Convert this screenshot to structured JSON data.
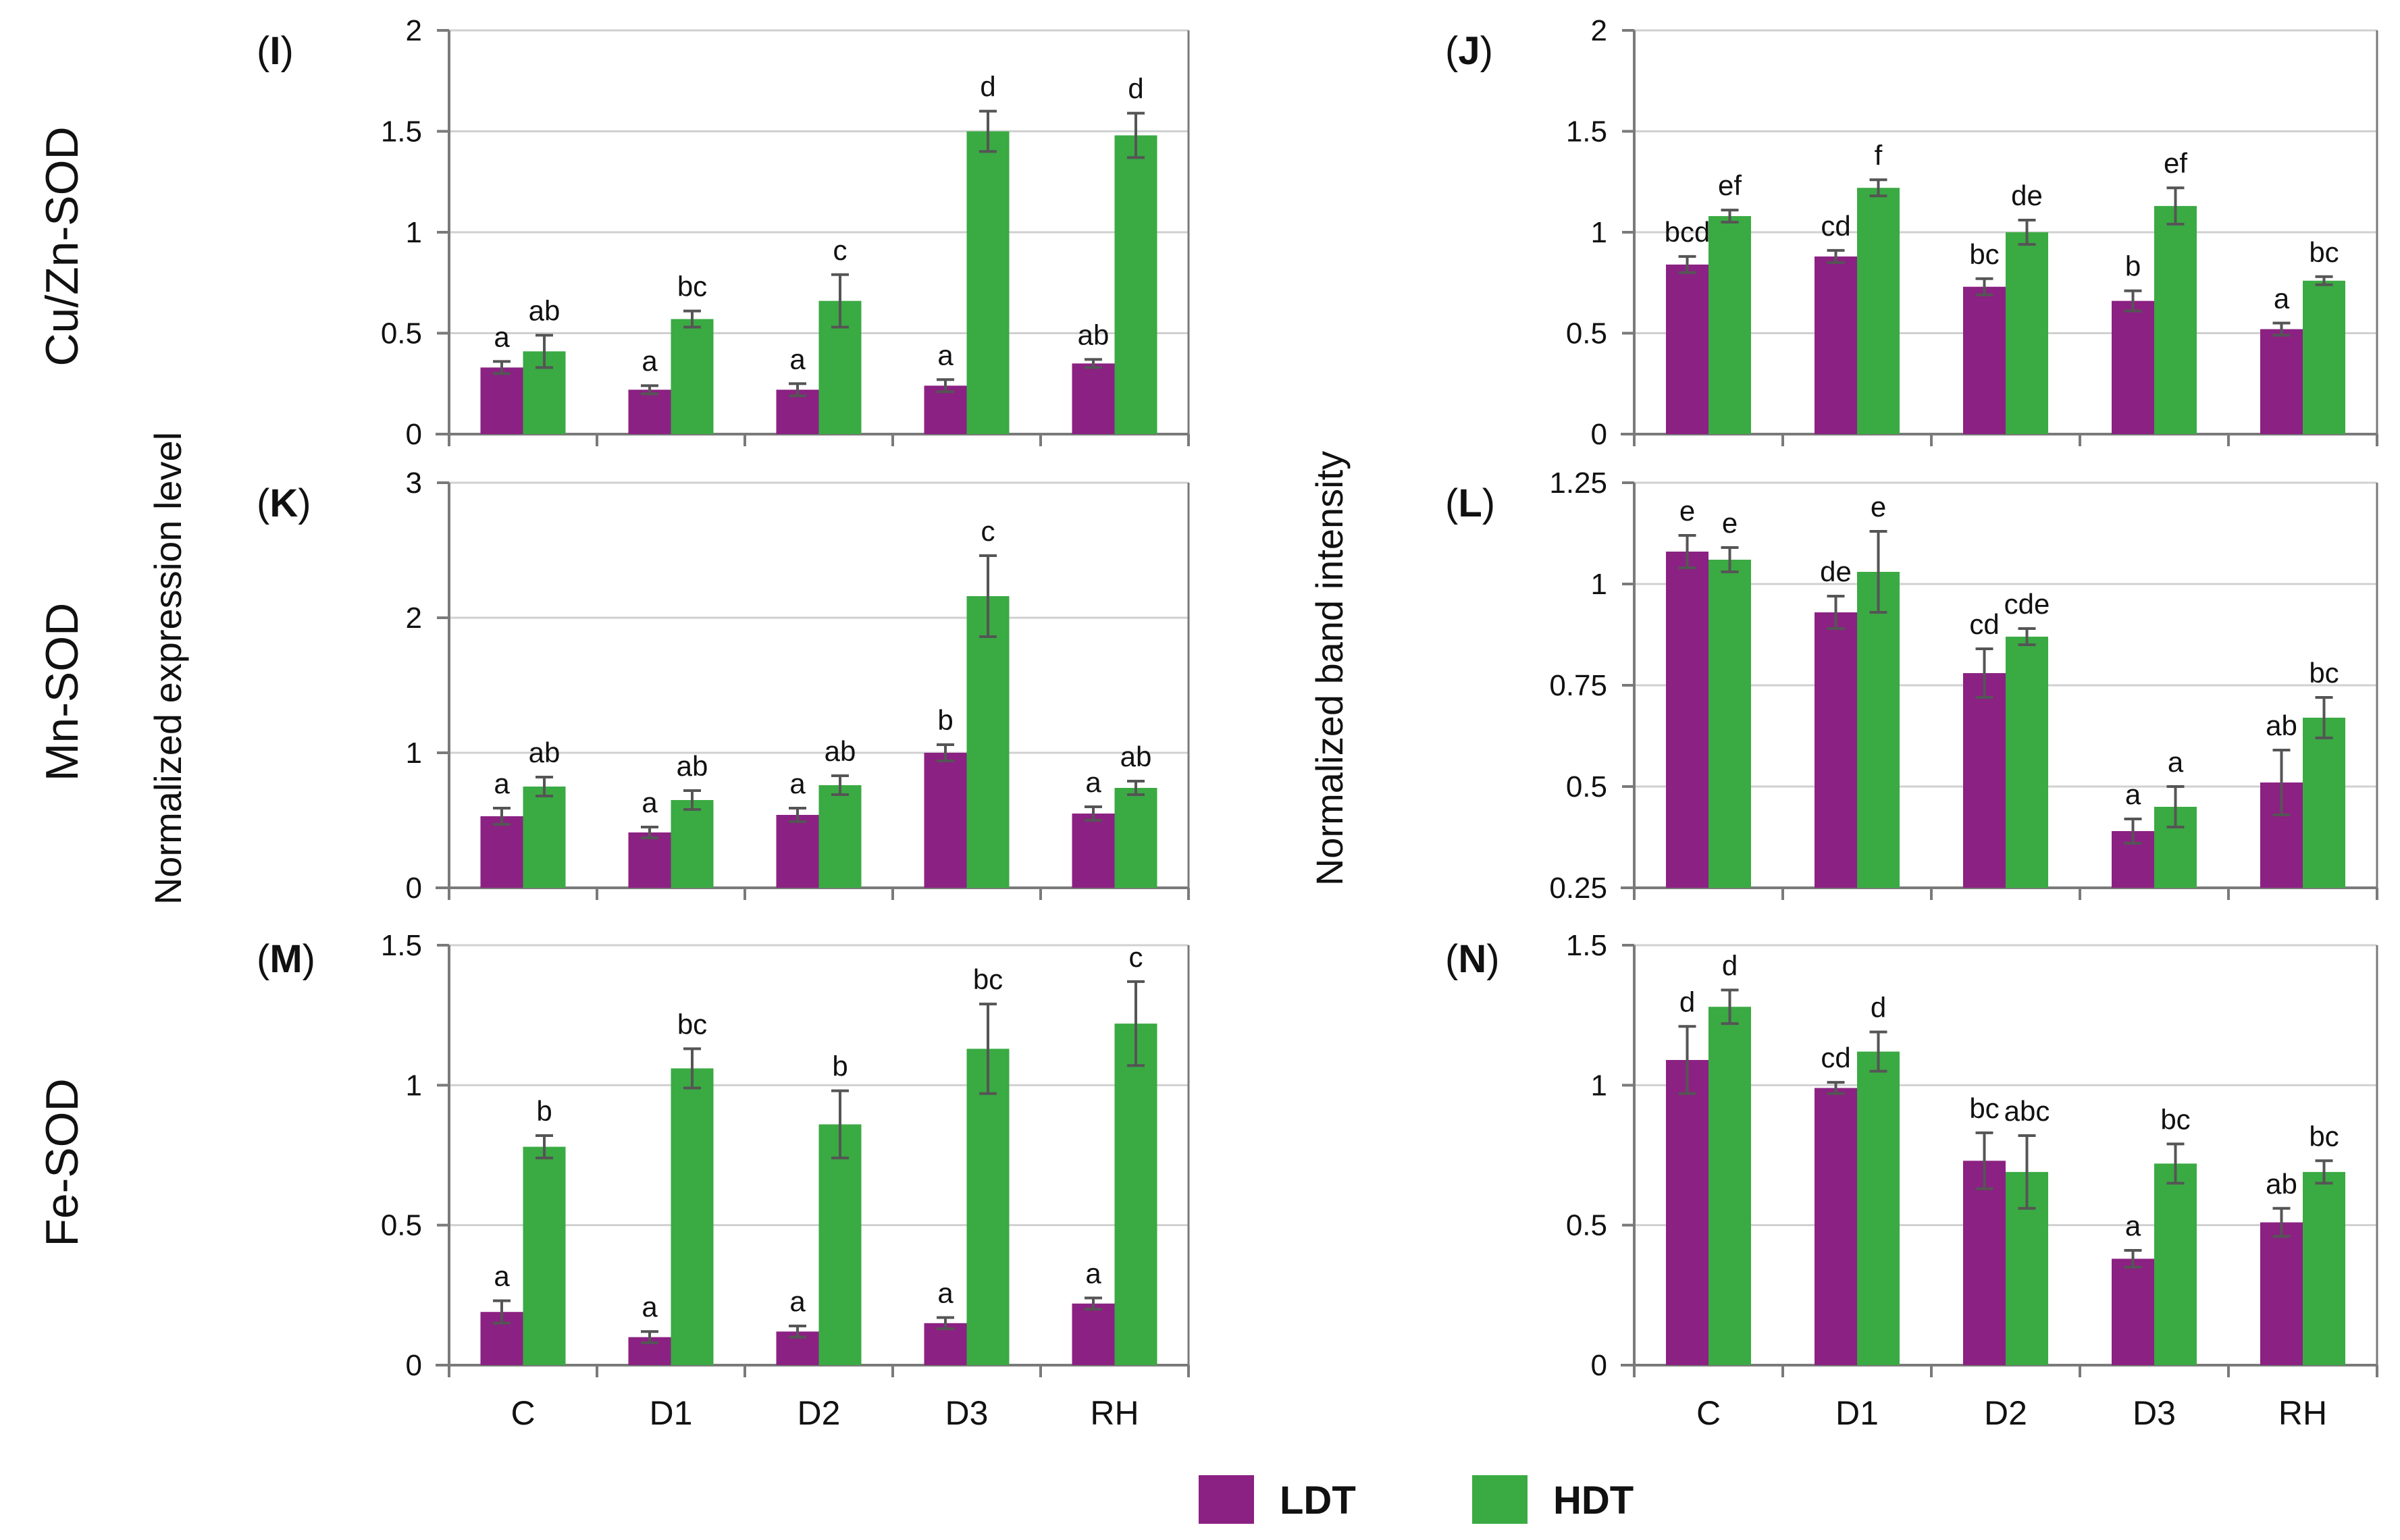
{
  "colors": {
    "LDT": "#8b2182",
    "HDT": "#3aaa43",
    "grid": "#d0d0d0",
    "axis": "#7a7a7a",
    "error": "#555555"
  },
  "legend": [
    {
      "key": "LDT",
      "label": "LDT"
    },
    {
      "key": "HDT",
      "label": "HDT"
    }
  ],
  "row_labels": [
    "Cu/Zn-SOD",
    "Mn-SOD",
    "Fe-SOD"
  ],
  "y_titles": {
    "left": "Normalized expression level",
    "right": "Normalized band intensity"
  },
  "chart_data": [
    {
      "panel": "I",
      "type": "bar",
      "categories": [
        "C",
        "D1",
        "D2",
        "D3",
        "RH"
      ],
      "ylim": [
        0,
        2
      ],
      "yticks": [
        0,
        0.5,
        1,
        1.5,
        2
      ],
      "ytick_labels": [
        "0",
        "0.5",
        "1",
        "1.5",
        "2"
      ],
      "series": [
        {
          "name": "LDT",
          "values": [
            0.33,
            0.22,
            0.22,
            0.24,
            0.35
          ],
          "errors": [
            0.03,
            0.02,
            0.03,
            0.03,
            0.02
          ],
          "letters": [
            "a",
            "a",
            "a",
            "a",
            "ab"
          ]
        },
        {
          "name": "HDT",
          "values": [
            0.41,
            0.57,
            0.66,
            1.5,
            1.48
          ],
          "errors": [
            0.08,
            0.04,
            0.13,
            0.1,
            0.11
          ],
          "letters": [
            "ab",
            "bc",
            "c",
            "d",
            "d"
          ]
        }
      ]
    },
    {
      "panel": "J",
      "type": "bar",
      "categories": [
        "C",
        "D1",
        "D2",
        "D3",
        "RH"
      ],
      "ylim": [
        0,
        2
      ],
      "yticks": [
        0,
        0.5,
        1,
        1.5,
        2
      ],
      "ytick_labels": [
        "0",
        "0.5",
        "1",
        "1.5",
        "2"
      ],
      "series": [
        {
          "name": "LDT",
          "values": [
            0.84,
            0.88,
            0.73,
            0.66,
            0.52
          ],
          "errors": [
            0.04,
            0.03,
            0.04,
            0.05,
            0.03
          ],
          "letters": [
            "bcd",
            "cd",
            "bc",
            "b",
            "a"
          ]
        },
        {
          "name": "HDT",
          "values": [
            1.08,
            1.22,
            1.0,
            1.13,
            0.76
          ],
          "errors": [
            0.03,
            0.04,
            0.06,
            0.09,
            0.02
          ],
          "letters": [
            "ef",
            "f",
            "de",
            "ef",
            "bc"
          ]
        }
      ]
    },
    {
      "panel": "K",
      "type": "bar",
      "categories": [
        "C",
        "D1",
        "D2",
        "D3",
        "RH"
      ],
      "ylim": [
        0,
        3
      ],
      "yticks": [
        0,
        1,
        2,
        3
      ],
      "ytick_labels": [
        "0",
        "1",
        "2",
        "3"
      ],
      "series": [
        {
          "name": "LDT",
          "values": [
            0.53,
            0.41,
            0.54,
            1.0,
            0.55
          ],
          "errors": [
            0.06,
            0.04,
            0.05,
            0.06,
            0.05
          ],
          "letters": [
            "a",
            "a",
            "a",
            "b",
            "a"
          ]
        },
        {
          "name": "HDT",
          "values": [
            0.75,
            0.65,
            0.76,
            2.16,
            0.74
          ],
          "errors": [
            0.07,
            0.07,
            0.07,
            0.3,
            0.05
          ],
          "letters": [
            "ab",
            "ab",
            "ab",
            "c",
            "ab"
          ]
        }
      ]
    },
    {
      "panel": "L",
      "type": "bar",
      "categories": [
        "C",
        "D1",
        "D2",
        "D3",
        "RH"
      ],
      "ylim": [
        0.25,
        1.25
      ],
      "yticks": [
        0.25,
        0.5,
        0.75,
        1,
        1.25
      ],
      "ytick_labels": [
        "0.25",
        "0.5",
        "0.75",
        "1",
        "1.25"
      ],
      "series": [
        {
          "name": "LDT",
          "values": [
            1.08,
            0.93,
            0.78,
            0.39,
            0.51
          ],
          "errors": [
            0.04,
            0.04,
            0.06,
            0.03,
            0.08
          ],
          "letters": [
            "e",
            "de",
            "cd",
            "a",
            "ab"
          ]
        },
        {
          "name": "HDT",
          "values": [
            1.06,
            1.03,
            0.87,
            0.45,
            0.67
          ],
          "errors": [
            0.03,
            0.1,
            0.02,
            0.05,
            0.05
          ],
          "letters": [
            "e",
            "e",
            "cde",
            "a",
            "bc"
          ]
        }
      ]
    },
    {
      "panel": "M",
      "type": "bar",
      "categories": [
        "C",
        "D1",
        "D2",
        "D3",
        "RH"
      ],
      "ylim": [
        0,
        1.5
      ],
      "yticks": [
        0,
        0.5,
        1,
        1.5
      ],
      "ytick_labels": [
        "0",
        "0.5",
        "1",
        "1.5"
      ],
      "series": [
        {
          "name": "LDT",
          "values": [
            0.19,
            0.1,
            0.12,
            0.15,
            0.22
          ],
          "errors": [
            0.04,
            0.02,
            0.02,
            0.02,
            0.02
          ],
          "letters": [
            "a",
            "a",
            "a",
            "a",
            "a"
          ]
        },
        {
          "name": "HDT",
          "values": [
            0.78,
            1.06,
            0.86,
            1.13,
            1.22
          ],
          "errors": [
            0.04,
            0.07,
            0.12,
            0.16,
            0.15
          ],
          "letters": [
            "b",
            "bc",
            "b",
            "bc",
            "c"
          ]
        }
      ]
    },
    {
      "panel": "N",
      "type": "bar",
      "categories": [
        "C",
        "D1",
        "D2",
        "D3",
        "RH"
      ],
      "ylim": [
        0,
        1.5
      ],
      "yticks": [
        0,
        0.5,
        1,
        1.5
      ],
      "ytick_labels": [
        "0",
        "0.5",
        "1",
        "1.5"
      ],
      "series": [
        {
          "name": "LDT",
          "values": [
            1.09,
            0.99,
            0.73,
            0.38,
            0.51
          ],
          "errors": [
            0.12,
            0.02,
            0.1,
            0.03,
            0.05
          ],
          "letters": [
            "d",
            "cd",
            "bc",
            "a",
            "ab"
          ]
        },
        {
          "name": "HDT",
          "values": [
            1.28,
            1.12,
            0.69,
            0.72,
            0.69
          ],
          "errors": [
            0.06,
            0.07,
            0.13,
            0.07,
            0.04
          ],
          "letters": [
            "d",
            "d",
            "abc",
            "bc",
            "bc"
          ]
        }
      ]
    }
  ]
}
